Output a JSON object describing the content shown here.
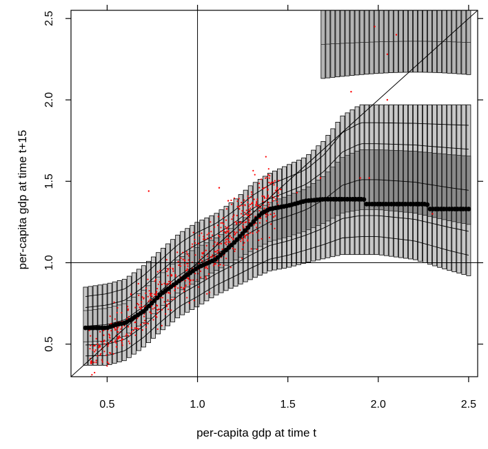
{
  "chart_data": {
    "type": "boxplot",
    "title": "",
    "xlabel": "per-capita gdp at time t",
    "ylabel": "per-capita gdp at time t+15",
    "xlim": [
      0.3,
      2.55
    ],
    "ylim": [
      0.3,
      2.55
    ],
    "x_ticks": [
      "0.5",
      "1.0",
      "1.5",
      "2.0",
      "2.5"
    ],
    "y_ticks": [
      "0.5",
      "1.0",
      "1.5",
      "2.0",
      "2.5"
    ],
    "reference_lines": {
      "vertical_x": 1.0,
      "horizontal_y": 1.0,
      "diagonal": "y = x"
    },
    "grid": false,
    "legend": "none",
    "colors": {
      "box_fill": "#c8c8c8",
      "band_fills": [
        "#cfcfcf",
        "#bdbdbd",
        "#a9a9a9",
        "#979797",
        "#8a8a8a"
      ],
      "box_stroke": "#000000",
      "median_marker": "#000000",
      "observations": "#ff0000"
    },
    "box_x_range": [
      0.38,
      2.5
    ],
    "box_count": 80,
    "envelope_low": [
      [
        0.38,
        0.37
      ],
      [
        0.5,
        0.37
      ],
      [
        0.6,
        0.4
      ],
      [
        0.7,
        0.48
      ],
      [
        0.8,
        0.58
      ],
      [
        0.9,
        0.67
      ],
      [
        1.0,
        0.73
      ],
      [
        1.1,
        0.8
      ],
      [
        1.2,
        0.85
      ],
      [
        1.3,
        0.9
      ],
      [
        1.4,
        0.95
      ],
      [
        1.5,
        0.97
      ],
      [
        1.6,
        1.0
      ],
      [
        1.8,
        1.05
      ],
      [
        2.0,
        1.05
      ],
      [
        2.2,
        1.02
      ],
      [
        2.4,
        0.95
      ],
      [
        2.5,
        0.92
      ]
    ],
    "envelope_high": [
      [
        0.38,
        0.85
      ],
      [
        0.5,
        0.87
      ],
      [
        0.6,
        0.9
      ],
      [
        0.7,
        0.98
      ],
      [
        0.8,
        1.08
      ],
      [
        0.9,
        1.18
      ],
      [
        1.0,
        1.25
      ],
      [
        1.1,
        1.3
      ],
      [
        1.2,
        1.38
      ],
      [
        1.3,
        1.48
      ],
      [
        1.4,
        1.55
      ],
      [
        1.5,
        1.6
      ],
      [
        1.6,
        1.65
      ],
      [
        1.7,
        1.75
      ],
      [
        1.8,
        1.9
      ],
      [
        1.9,
        1.97
      ],
      [
        2.0,
        1.97
      ],
      [
        2.2,
        1.97
      ],
      [
        2.4,
        1.97
      ],
      [
        2.5,
        1.97
      ]
    ],
    "upper_mode_band": {
      "x_range": [
        1.68,
        2.5
      ],
      "low": 2.13,
      "high": 2.55
    },
    "conditional_median": [
      [
        0.38,
        0.6
      ],
      [
        0.5,
        0.6
      ],
      [
        0.55,
        0.62
      ],
      [
        0.6,
        0.63
      ],
      [
        0.7,
        0.7
      ],
      [
        0.8,
        0.81
      ],
      [
        0.9,
        0.89
      ],
      [
        1.0,
        0.97
      ],
      [
        1.1,
        1.02
      ],
      [
        1.2,
        1.12
      ],
      [
        1.3,
        1.24
      ],
      [
        1.35,
        1.3
      ],
      [
        1.4,
        1.33
      ],
      [
        1.5,
        1.35
      ],
      [
        1.6,
        1.38
      ],
      [
        1.7,
        1.39
      ],
      [
        1.92,
        1.39
      ],
      [
        1.93,
        1.36
      ],
      [
        2.27,
        1.36
      ],
      [
        2.28,
        1.33
      ],
      [
        2.5,
        1.33
      ]
    ],
    "observations": {
      "count": 650,
      "main_cluster_x_range": [
        0.4,
        1.45
      ],
      "center_line": "y = x",
      "spread": 0.07,
      "outliers": [
        [
          0.73,
          1.44
        ],
        [
          1.12,
          1.46
        ],
        [
          1.17,
          1.38
        ],
        [
          1.46,
          1.45
        ],
        [
          1.55,
          1.43
        ],
        [
          1.95,
          1.52
        ],
        [
          1.98,
          2.45
        ],
        [
          2.05,
          2.28
        ],
        [
          2.1,
          2.4
        ],
        [
          1.85,
          2.05
        ],
        [
          2.05,
          2.0
        ],
        [
          2.3,
          1.3
        ],
        [
          1.68,
          1.52
        ],
        [
          1.9,
          1.52
        ]
      ]
    }
  }
}
